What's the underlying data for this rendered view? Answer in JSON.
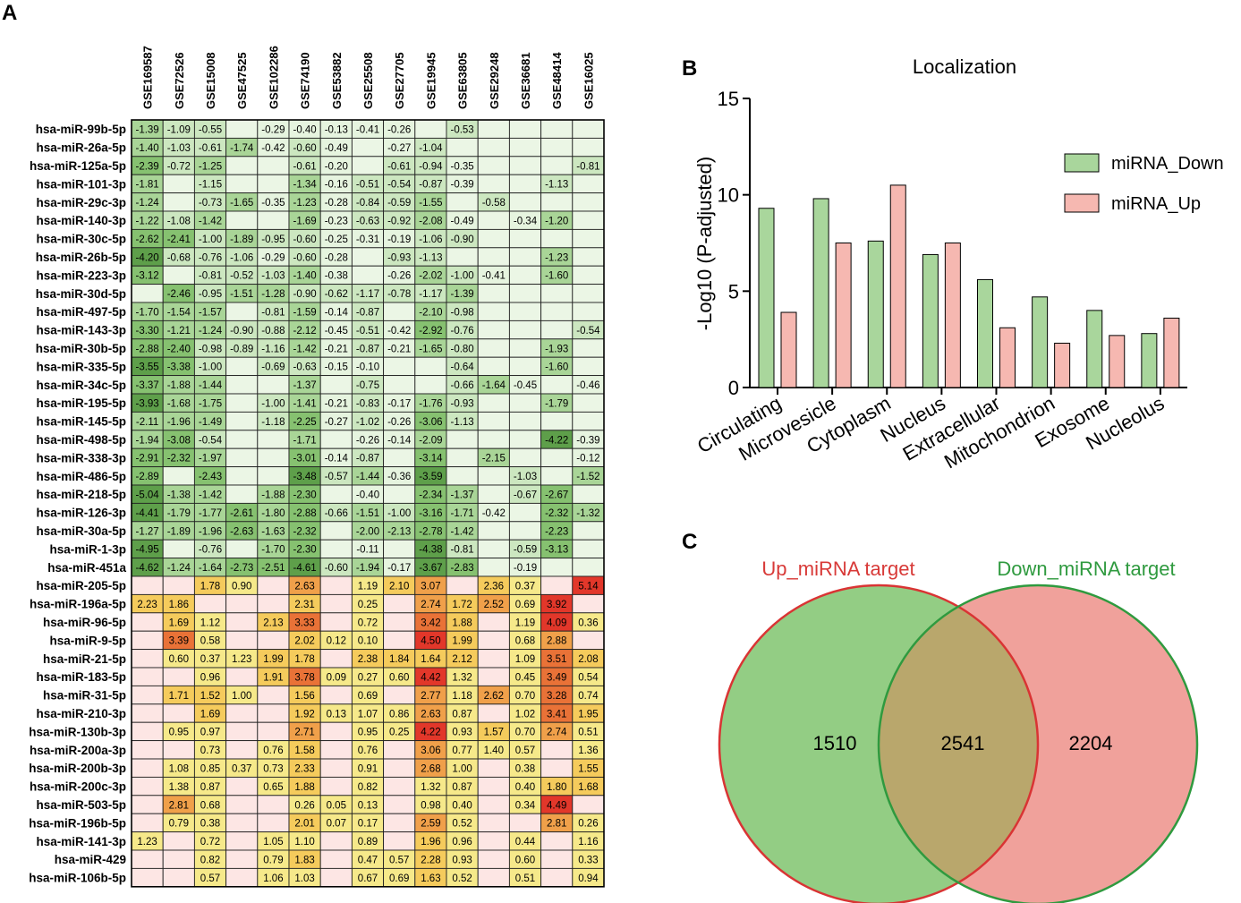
{
  "panels": {
    "A": {
      "letter": "A"
    },
    "B": {
      "letter": "B"
    },
    "C": {
      "letter": "C"
    }
  },
  "colors": {
    "down_scale": [
      "#e6f4df",
      "#cce7c0",
      "#a9d597",
      "#86c170",
      "#5e9f4a"
    ],
    "up_scale": [
      "#f6e98a",
      "#f5cb5c",
      "#f0a04a",
      "#e97237",
      "#e2372a"
    ],
    "na_down": "#ebf6e5",
    "na_up": "#fde6e4",
    "bar_down": "#a9d69c",
    "bar_up": "#f6b8b1",
    "venn_left_fill": "#93cd84",
    "venn_right_fill": "#f0a19b",
    "venn_overlap": "#b9a76c",
    "venn_left_stroke": "#d93434",
    "venn_right_stroke": "#2f9a3f",
    "venn_left_label": "#d83a38",
    "venn_right_label": "#2f9a3f"
  },
  "chart_data": [
    {
      "type": "heatmap",
      "panel": "A",
      "columns": [
        "GSE169587",
        "GSE72526",
        "GSE15008",
        "GSE47525",
        "GSE102286",
        "GSE74190",
        "GSE53882",
        "GSE25508",
        "GSE27705",
        "GSE19945",
        "GSE63805",
        "GSE29248",
        "GSE36681",
        "GSE48414",
        "GSE16025"
      ],
      "rows_down": [
        {
          "name": "hsa-miR-99b-5p",
          "values": [
            -1.39,
            -1.09,
            -0.55,
            null,
            -0.29,
            -0.4,
            -0.13,
            -0.41,
            -0.26,
            null,
            -0.53,
            null,
            null,
            null,
            null
          ]
        },
        {
          "name": "hsa-miR-26a-5p",
          "values": [
            -1.4,
            -1.03,
            -0.61,
            -1.74,
            -0.42,
            -0.6,
            -0.49,
            null,
            -0.27,
            -1.04,
            null,
            null,
            null,
            null,
            null
          ]
        },
        {
          "name": "hsa-miR-125a-5p",
          "values": [
            -2.39,
            -0.72,
            -1.25,
            null,
            null,
            -0.61,
            -0.2,
            null,
            -0.61,
            -0.94,
            -0.35,
            null,
            null,
            null,
            -0.81
          ]
        },
        {
          "name": "hsa-miR-101-3p",
          "values": [
            -1.81,
            null,
            -1.15,
            null,
            null,
            -1.34,
            -0.16,
            -0.51,
            -0.54,
            -0.87,
            -0.39,
            null,
            null,
            -1.13,
            null
          ]
        },
        {
          "name": "hsa-miR-29c-3p",
          "values": [
            -1.24,
            null,
            -0.73,
            -1.65,
            -0.35,
            -1.23,
            -0.28,
            -0.84,
            -0.59,
            -1.55,
            null,
            -0.58,
            null,
            null,
            null
          ]
        },
        {
          "name": "hsa-miR-140-3p",
          "values": [
            -1.22,
            -1.08,
            -1.42,
            null,
            null,
            -1.69,
            -0.23,
            -0.63,
            -0.92,
            -2.08,
            -0.49,
            null,
            -0.34,
            -1.2,
            null
          ]
        },
        {
          "name": "hsa-miR-30c-5p",
          "values": [
            -2.62,
            -2.41,
            -1.0,
            -1.89,
            -0.95,
            -0.6,
            -0.25,
            -0.31,
            -0.19,
            -1.06,
            -0.9,
            null,
            null,
            null,
            null
          ]
        },
        {
          "name": "hsa-miR-26b-5p",
          "values": [
            -4.2,
            -0.68,
            -0.76,
            -1.06,
            -0.29,
            -0.6,
            -0.28,
            null,
            -0.93,
            -1.13,
            null,
            null,
            null,
            -1.23,
            null
          ]
        },
        {
          "name": "hsa-miR-223-3p",
          "values": [
            -3.12,
            null,
            -0.81,
            -0.52,
            -1.03,
            -1.4,
            -0.38,
            null,
            -0.26,
            -2.02,
            -1.0,
            -0.41,
            null,
            -1.6,
            null
          ]
        },
        {
          "name": "hsa-miR-30d-5p",
          "values": [
            null,
            -2.46,
            -0.95,
            -1.51,
            -1.28,
            -0.9,
            -0.62,
            -1.17,
            -0.78,
            -1.17,
            -1.39,
            null,
            null,
            null,
            null
          ]
        },
        {
          "name": "hsa-miR-497-5p",
          "values": [
            -1.7,
            -1.54,
            -1.57,
            null,
            -0.81,
            -1.59,
            -0.14,
            -0.87,
            null,
            -2.1,
            -0.98,
            null,
            null,
            null,
            null
          ]
        },
        {
          "name": "hsa-miR-143-3p",
          "values": [
            -3.3,
            -1.21,
            -1.24,
            -0.9,
            -0.88,
            -2.12,
            -0.45,
            -0.51,
            -0.42,
            -2.92,
            -0.76,
            null,
            null,
            null,
            -0.54
          ]
        },
        {
          "name": "hsa-miR-30b-5p",
          "values": [
            -2.88,
            -2.4,
            -0.98,
            -0.89,
            -1.16,
            -1.42,
            -0.21,
            -0.87,
            -0.21,
            -1.65,
            -0.8,
            null,
            null,
            -1.93,
            null
          ]
        },
        {
          "name": "hsa-miR-335-5p",
          "values": [
            -3.55,
            -3.38,
            -1.0,
            null,
            -0.69,
            -0.63,
            -0.15,
            -0.1,
            null,
            null,
            -0.64,
            null,
            null,
            -1.6,
            null
          ]
        },
        {
          "name": "hsa-miR-34c-5p",
          "values": [
            -3.37,
            -1.88,
            -1.44,
            null,
            null,
            -1.37,
            null,
            -0.75,
            null,
            null,
            -0.66,
            -1.64,
            -0.45,
            null,
            -0.46
          ]
        },
        {
          "name": "hsa-miR-195-5p",
          "values": [
            -3.93,
            -1.68,
            -1.75,
            null,
            -1.0,
            -1.41,
            -0.21,
            -0.83,
            -0.17,
            -1.76,
            -0.93,
            null,
            null,
            -1.79,
            null
          ]
        },
        {
          "name": "hsa-miR-145-5p",
          "values": [
            -2.11,
            -1.96,
            -1.49,
            null,
            -1.18,
            -2.25,
            -0.27,
            -1.02,
            -0.26,
            -3.06,
            -1.13,
            null,
            null,
            null,
            null
          ]
        },
        {
          "name": "hsa-miR-498-5p",
          "values": [
            -1.94,
            -3.08,
            -0.54,
            null,
            null,
            -1.71,
            null,
            -0.26,
            -0.14,
            -2.09,
            null,
            null,
            null,
            -4.22,
            -0.39
          ]
        },
        {
          "name": "hsa-miR-338-3p",
          "values": [
            -2.91,
            -2.32,
            -1.97,
            null,
            null,
            -3.01,
            -0.14,
            -0.87,
            null,
            -3.14,
            null,
            -2.15,
            null,
            null,
            -0.12
          ]
        },
        {
          "name": "hsa-miR-486-5p",
          "values": [
            -2.89,
            null,
            -2.43,
            null,
            null,
            -3.48,
            -0.57,
            -1.44,
            -0.36,
            -3.59,
            null,
            null,
            -1.03,
            null,
            -1.52
          ]
        },
        {
          "name": "hsa-miR-218-5p",
          "values": [
            -5.04,
            -1.38,
            -1.42,
            null,
            -1.88,
            -2.3,
            null,
            -0.4,
            null,
            -2.34,
            -1.37,
            null,
            -0.67,
            -2.67,
            null
          ]
        },
        {
          "name": "hsa-miR-126-3p",
          "values": [
            -4.41,
            -1.79,
            -1.77,
            -2.61,
            -1.8,
            -2.88,
            -0.66,
            -1.51,
            -1.0,
            -3.16,
            -1.71,
            -0.42,
            null,
            -2.32,
            -1.32
          ]
        },
        {
          "name": "hsa-miR-30a-5p",
          "values": [
            -1.27,
            -1.89,
            -1.96,
            -2.63,
            -1.63,
            -2.32,
            null,
            -2.0,
            -2.13,
            -2.78,
            -1.42,
            null,
            null,
            -2.23,
            null
          ]
        },
        {
          "name": "hsa-miR-1-3p",
          "values": [
            -4.95,
            null,
            -0.76,
            null,
            -1.7,
            -2.3,
            null,
            -0.11,
            null,
            -4.38,
            -0.81,
            null,
            -0.59,
            -3.13,
            null
          ]
        },
        {
          "name": "hsa-miR-451a",
          "values": [
            -4.62,
            -1.24,
            -1.64,
            -2.73,
            -2.51,
            -4.61,
            -0.6,
            -1.94,
            -0.17,
            -3.67,
            -2.83,
            null,
            -0.19,
            null,
            null
          ]
        }
      ],
      "rows_up": [
        {
          "name": "hsa-miR-205-5p",
          "values": [
            null,
            null,
            1.78,
            0.9,
            null,
            2.63,
            null,
            1.19,
            2.1,
            3.07,
            null,
            2.36,
            0.37,
            null,
            5.14
          ]
        },
        {
          "name": "hsa-miR-196a-5p",
          "values": [
            2.23,
            1.86,
            null,
            null,
            null,
            2.31,
            null,
            0.25,
            null,
            2.74,
            1.72,
            2.52,
            0.69,
            3.92,
            null
          ]
        },
        {
          "name": "hsa-miR-96-5p",
          "values": [
            null,
            1.69,
            1.12,
            null,
            2.13,
            3.33,
            null,
            0.72,
            null,
            3.42,
            1.88,
            null,
            1.19,
            4.09,
            0.36
          ]
        },
        {
          "name": "hsa-miR-9-5p",
          "values": [
            null,
            3.39,
            0.58,
            null,
            null,
            2.02,
            0.12,
            0.1,
            null,
            4.5,
            1.99,
            null,
            0.68,
            2.88,
            null
          ]
        },
        {
          "name": "hsa-miR-21-5p",
          "values": [
            null,
            0.6,
            0.37,
            1.23,
            1.99,
            1.78,
            null,
            2.38,
            1.84,
            1.64,
            2.12,
            null,
            1.09,
            3.51,
            2.08
          ]
        },
        {
          "name": "hsa-miR-183-5p",
          "values": [
            null,
            null,
            0.96,
            null,
            1.91,
            3.78,
            0.09,
            0.27,
            0.6,
            4.42,
            1.32,
            null,
            0.45,
            3.49,
            0.54
          ]
        },
        {
          "name": "hsa-miR-31-5p",
          "values": [
            null,
            1.71,
            1.52,
            1.0,
            null,
            1.56,
            null,
            0.69,
            null,
            2.77,
            1.18,
            2.62,
            0.7,
            3.28,
            0.74
          ]
        },
        {
          "name": "hsa-miR-210-3p",
          "values": [
            null,
            null,
            1.69,
            null,
            null,
            1.92,
            0.13,
            1.07,
            0.86,
            2.63,
            0.87,
            null,
            1.02,
            3.41,
            1.95
          ]
        },
        {
          "name": "hsa-miR-130b-3p",
          "values": [
            null,
            0.95,
            0.97,
            null,
            null,
            2.71,
            null,
            0.95,
            0.25,
            4.22,
            0.93,
            1.57,
            0.7,
            2.74,
            0.51
          ]
        },
        {
          "name": "hsa-miR-200a-3p",
          "values": [
            null,
            null,
            0.73,
            null,
            0.76,
            1.58,
            null,
            0.76,
            null,
            3.06,
            0.77,
            1.4,
            0.57,
            null,
            1.36
          ]
        },
        {
          "name": "hsa-miR-200b-3p",
          "values": [
            null,
            1.08,
            0.85,
            0.37,
            0.73,
            2.33,
            null,
            0.91,
            null,
            2.68,
            1.0,
            null,
            0.38,
            null,
            1.55
          ]
        },
        {
          "name": "hsa-miR-200c-3p",
          "values": [
            null,
            1.38,
            0.87,
            null,
            0.65,
            1.88,
            null,
            0.82,
            null,
            1.32,
            0.87,
            null,
            0.4,
            1.8,
            1.68
          ]
        },
        {
          "name": "hsa-miR-503-5p",
          "values": [
            null,
            2.81,
            0.68,
            null,
            null,
            0.26,
            0.05,
            0.13,
            null,
            0.98,
            0.4,
            null,
            0.34,
            4.49,
            null
          ]
        },
        {
          "name": "hsa-miR-196b-5p",
          "values": [
            null,
            0.79,
            0.38,
            null,
            null,
            2.01,
            0.07,
            0.17,
            null,
            2.59,
            0.52,
            null,
            null,
            2.81,
            0.26
          ]
        },
        {
          "name": "hsa-miR-141-3p",
          "values": [
            1.23,
            null,
            0.72,
            null,
            1.05,
            1.1,
            null,
            0.89,
            null,
            1.96,
            0.96,
            null,
            0.44,
            null,
            1.16
          ]
        },
        {
          "name": "hsa-miR-429",
          "values": [
            null,
            null,
            0.82,
            null,
            0.79,
            1.83,
            null,
            0.47,
            0.57,
            2.28,
            0.93,
            null,
            0.6,
            null,
            0.33
          ]
        },
        {
          "name": "hsa-miR-106b-5p",
          "values": [
            null,
            null,
            0.57,
            null,
            1.06,
            1.03,
            null,
            0.67,
            0.69,
            1.63,
            0.52,
            null,
            0.51,
            null,
            0.94
          ]
        }
      ]
    },
    {
      "type": "bar",
      "panel": "B",
      "title": "Localization",
      "ylabel": "-Log10 (P-adjusted)",
      "xlabel": "",
      "ylim": [
        0,
        15
      ],
      "yticks": [
        "0",
        "5",
        "10",
        "15"
      ],
      "legend_position": "top-right",
      "categories": [
        "Circulating",
        "Microvesicle",
        "Cytoplasm",
        "Nucleus",
        "Extracellular",
        "Mitochondrion",
        "Exosome",
        "Nucleolus"
      ],
      "series": [
        {
          "name": "miRNA_Down",
          "values": [
            9.3,
            9.8,
            7.6,
            6.9,
            5.6,
            4.7,
            4.0,
            2.8
          ]
        },
        {
          "name": "miRNA_Up",
          "values": [
            3.9,
            7.5,
            10.5,
            7.5,
            3.1,
            2.3,
            2.7,
            3.6
          ]
        }
      ]
    },
    {
      "type": "venn",
      "panel": "C",
      "sets": [
        {
          "label": "Up_miRNA target",
          "only": "1510"
        },
        {
          "label": "Down_miRNA target",
          "only": "2204"
        }
      ],
      "intersection": "2541"
    }
  ]
}
